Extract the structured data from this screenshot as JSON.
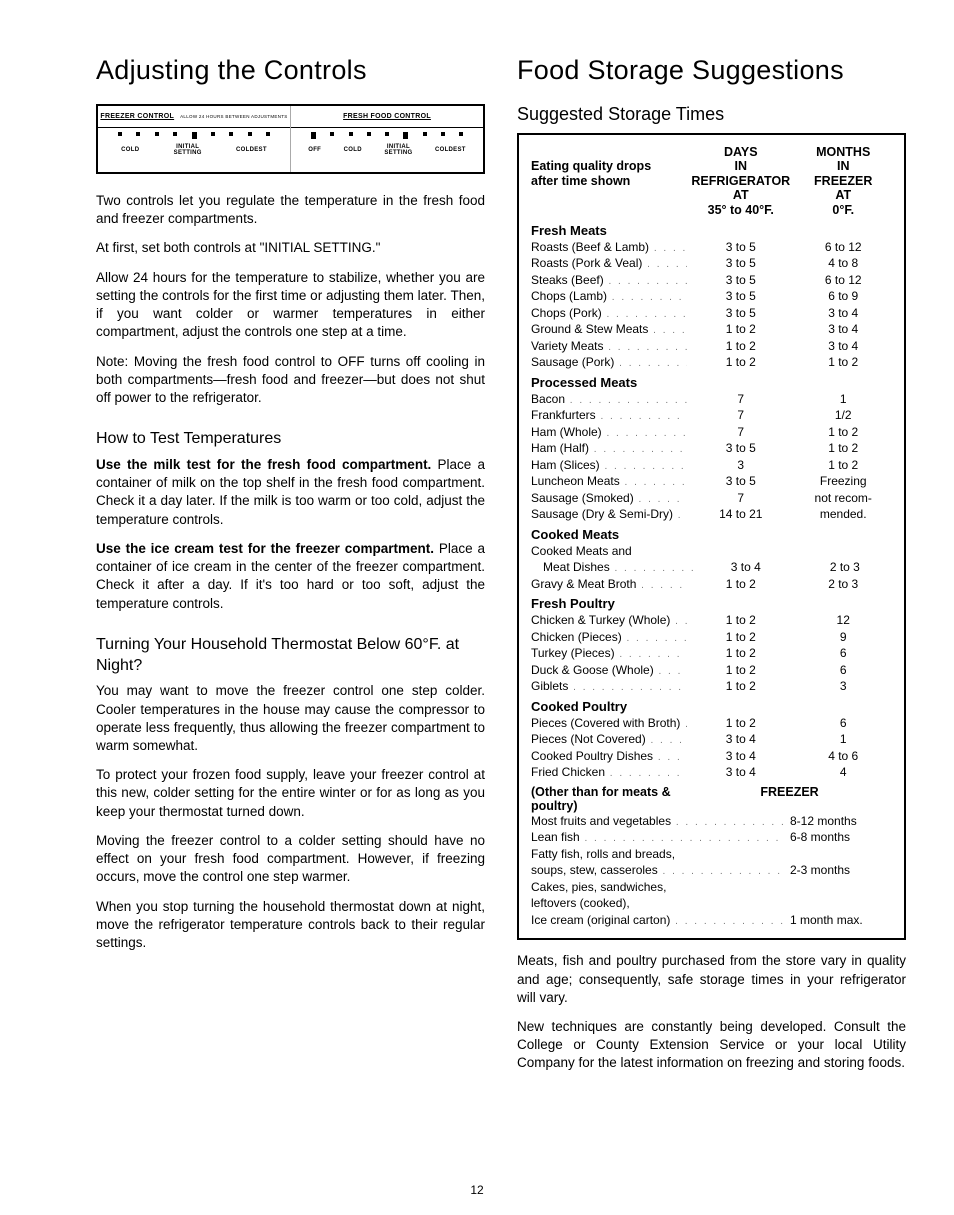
{
  "page_number": "12",
  "left": {
    "title": "Adjusting the Controls",
    "panel": {
      "freezer_title": "FREEZER CONTROL",
      "allow_text": "ALLOW 24 HOURS BETWEEN ADJUSTMENTS",
      "fresh_title": "FRESH FOOD CONTROL",
      "cold": "COLD",
      "initial": "INITIAL",
      "setting": "SETTING",
      "coldest": "COLDEST",
      "off": "OFF"
    },
    "p1": "Two controls let you regulate the temperature in the fresh food and freezer compartments.",
    "p2": "At first, set both controls at \"INITIAL SETTING.\"",
    "p3": "Allow 24 hours for the temperature to stabilize, whether you are setting the controls for the first time or adjusting them later. Then, if you want colder or warmer temperatures in either compartment, adjust the controls one step at a time.",
    "p4": "Note: Moving the fresh food control to OFF turns off cooling in both compartments—fresh food and freezer—but does not shut off power to the refrigerator.",
    "h2a": "How to Test Temperatures",
    "p5_lead": "Use the milk test for the fresh food compartment.",
    "p5": "Place a container of milk on the top shelf in the fresh food compartment. Check it a day later. If the milk is too warm or too cold, adjust the temperature controls.",
    "p6_lead": "Use the ice cream test for the freezer compartment.",
    "p6": "Place a container of ice cream in the center of the freezer compartment. Check it after a day. If it's too hard or too soft, adjust the temperature controls.",
    "h2b": "Turning Your Household Thermostat Below 60°F. at Night?",
    "p7": "You may want to move the freezer control one step colder. Cooler temperatures in the house may cause the compressor to operate less frequently, thus allowing the freezer compartment to warm somewhat.",
    "p8": "To protect your frozen food supply, leave your freezer control at this new, colder setting for the entire winter or for as long as you keep your thermostat turned down.",
    "p9": "Moving the freezer control to a colder setting should have no effect on your fresh food compartment. However, if freezing occurs, move the control one step warmer.",
    "p10": "When you stop turning the household thermostat down at night, move the refrigerator temperature controls back to their regular settings."
  },
  "right": {
    "title": "Food Storage Suggestions",
    "subtitle": "Suggested Storage Times",
    "header": {
      "left1": "Eating quality drops",
      "left2": "after time shown",
      "days": "DAYS",
      "in": "IN",
      "refrig": "REFRIGERATOR",
      "at": "AT",
      "range": "35° to 40°F.",
      "months": "MONTHS",
      "freezer": "FREEZER",
      "zero": "0°F."
    },
    "sections": [
      {
        "name": "Fresh Meats",
        "rows": [
          {
            "n": "Roasts (Beef & Lamb)",
            "d": "3 to 5",
            "m": "6 to 12"
          },
          {
            "n": "Roasts (Pork & Veal)",
            "d": "3 to 5",
            "m": "4 to 8"
          },
          {
            "n": "Steaks (Beef)",
            "d": "3 to 5",
            "m": "6 to 12"
          },
          {
            "n": "Chops (Lamb)",
            "d": "3 to 5",
            "m": "6 to 9"
          },
          {
            "n": "Chops (Pork)",
            "d": "3 to 5",
            "m": "3 to 4"
          },
          {
            "n": "Ground & Stew Meats",
            "d": "1 to 2",
            "m": "3 to 4"
          },
          {
            "n": "Variety Meats",
            "d": "1 to 2",
            "m": "3 to 4"
          },
          {
            "n": "Sausage (Pork)",
            "d": "1 to 2",
            "m": "1 to 2"
          }
        ]
      },
      {
        "name": "Processed Meats",
        "rows": [
          {
            "n": "Bacon",
            "d": "7",
            "m": "1"
          },
          {
            "n": "Frankfurters",
            "d": "7",
            "m": "1/2"
          },
          {
            "n": "Ham (Whole)",
            "d": "7",
            "m": "1 to 2"
          },
          {
            "n": "Ham (Half)",
            "d": "3 to 5",
            "m": "1 to 2"
          },
          {
            "n": "Ham (Slices)",
            "d": "3",
            "m": "1 to 2"
          },
          {
            "n": "Luncheon Meats",
            "d": "3 to 5",
            "m": "Freezing"
          },
          {
            "n": "Sausage (Smoked)",
            "d": "7",
            "m": "not recom-"
          },
          {
            "n": "Sausage (Dry & Semi-Dry)",
            "d": "14 to 21",
            "m": "mended."
          }
        ]
      },
      {
        "name": "Cooked Meats",
        "pre": "Cooked Meats and",
        "rows": [
          {
            "n": "Meat Dishes",
            "d": "3 to 4",
            "m": "2 to 3",
            "indent": true
          },
          {
            "n": "Gravy & Meat Broth",
            "d": "1 to 2",
            "m": "2 to 3"
          }
        ]
      },
      {
        "name": "Fresh Poultry",
        "rows": [
          {
            "n": "Chicken & Turkey (Whole)",
            "d": "1 to 2",
            "m": "12"
          },
          {
            "n": "Chicken (Pieces)",
            "d": "1 to 2",
            "m": "9"
          },
          {
            "n": "Turkey (Pieces)",
            "d": "1 to 2",
            "m": "6"
          },
          {
            "n": "Duck & Goose (Whole)",
            "d": "1 to 2",
            "m": "6"
          },
          {
            "n": "Giblets",
            "d": "1 to 2",
            "m": "3"
          }
        ]
      },
      {
        "name": "Cooked Poultry",
        "rows": [
          {
            "n": "Pieces (Covered with Broth)",
            "d": "1 to 2",
            "m": "6"
          },
          {
            "n": "Pieces (Not Covered)",
            "d": "3 to 4",
            "m": "1"
          },
          {
            "n": "Cooked Poultry Dishes",
            "d": "3 to 4",
            "m": "4 to 6"
          },
          {
            "n": "Fried Chicken",
            "d": "3 to 4",
            "m": "4"
          }
        ]
      }
    ],
    "other_title": "(Other than for meats & poultry)",
    "other_freezer": "FREEZER",
    "other_rows": [
      {
        "n": "Most fruits and vegetables",
        "v": "8-12 months"
      },
      {
        "n": "Lean fish",
        "v": "6-8 months"
      },
      {
        "n": "Fatty fish, rolls and breads,",
        "v": "",
        "noline": true
      },
      {
        "n": "  soups, stew, casseroles",
        "v": "2-3 months"
      },
      {
        "n": "Cakes, pies, sandwiches,",
        "v": "",
        "noline": true
      },
      {
        "n": "  leftovers (cooked),",
        "v": "",
        "noline": true
      },
      {
        "n": "  Ice cream (original carton)",
        "v": "1 month max."
      }
    ],
    "p_after1": "Meats, fish and poultry purchased from the store vary in quality and age; consequently, safe storage times in your refrigerator will vary.",
    "p_after2": "New techniques are constantly being developed. Consult the College or County Extension Service or your local Utility Company for the latest information on freezing and storing foods."
  }
}
